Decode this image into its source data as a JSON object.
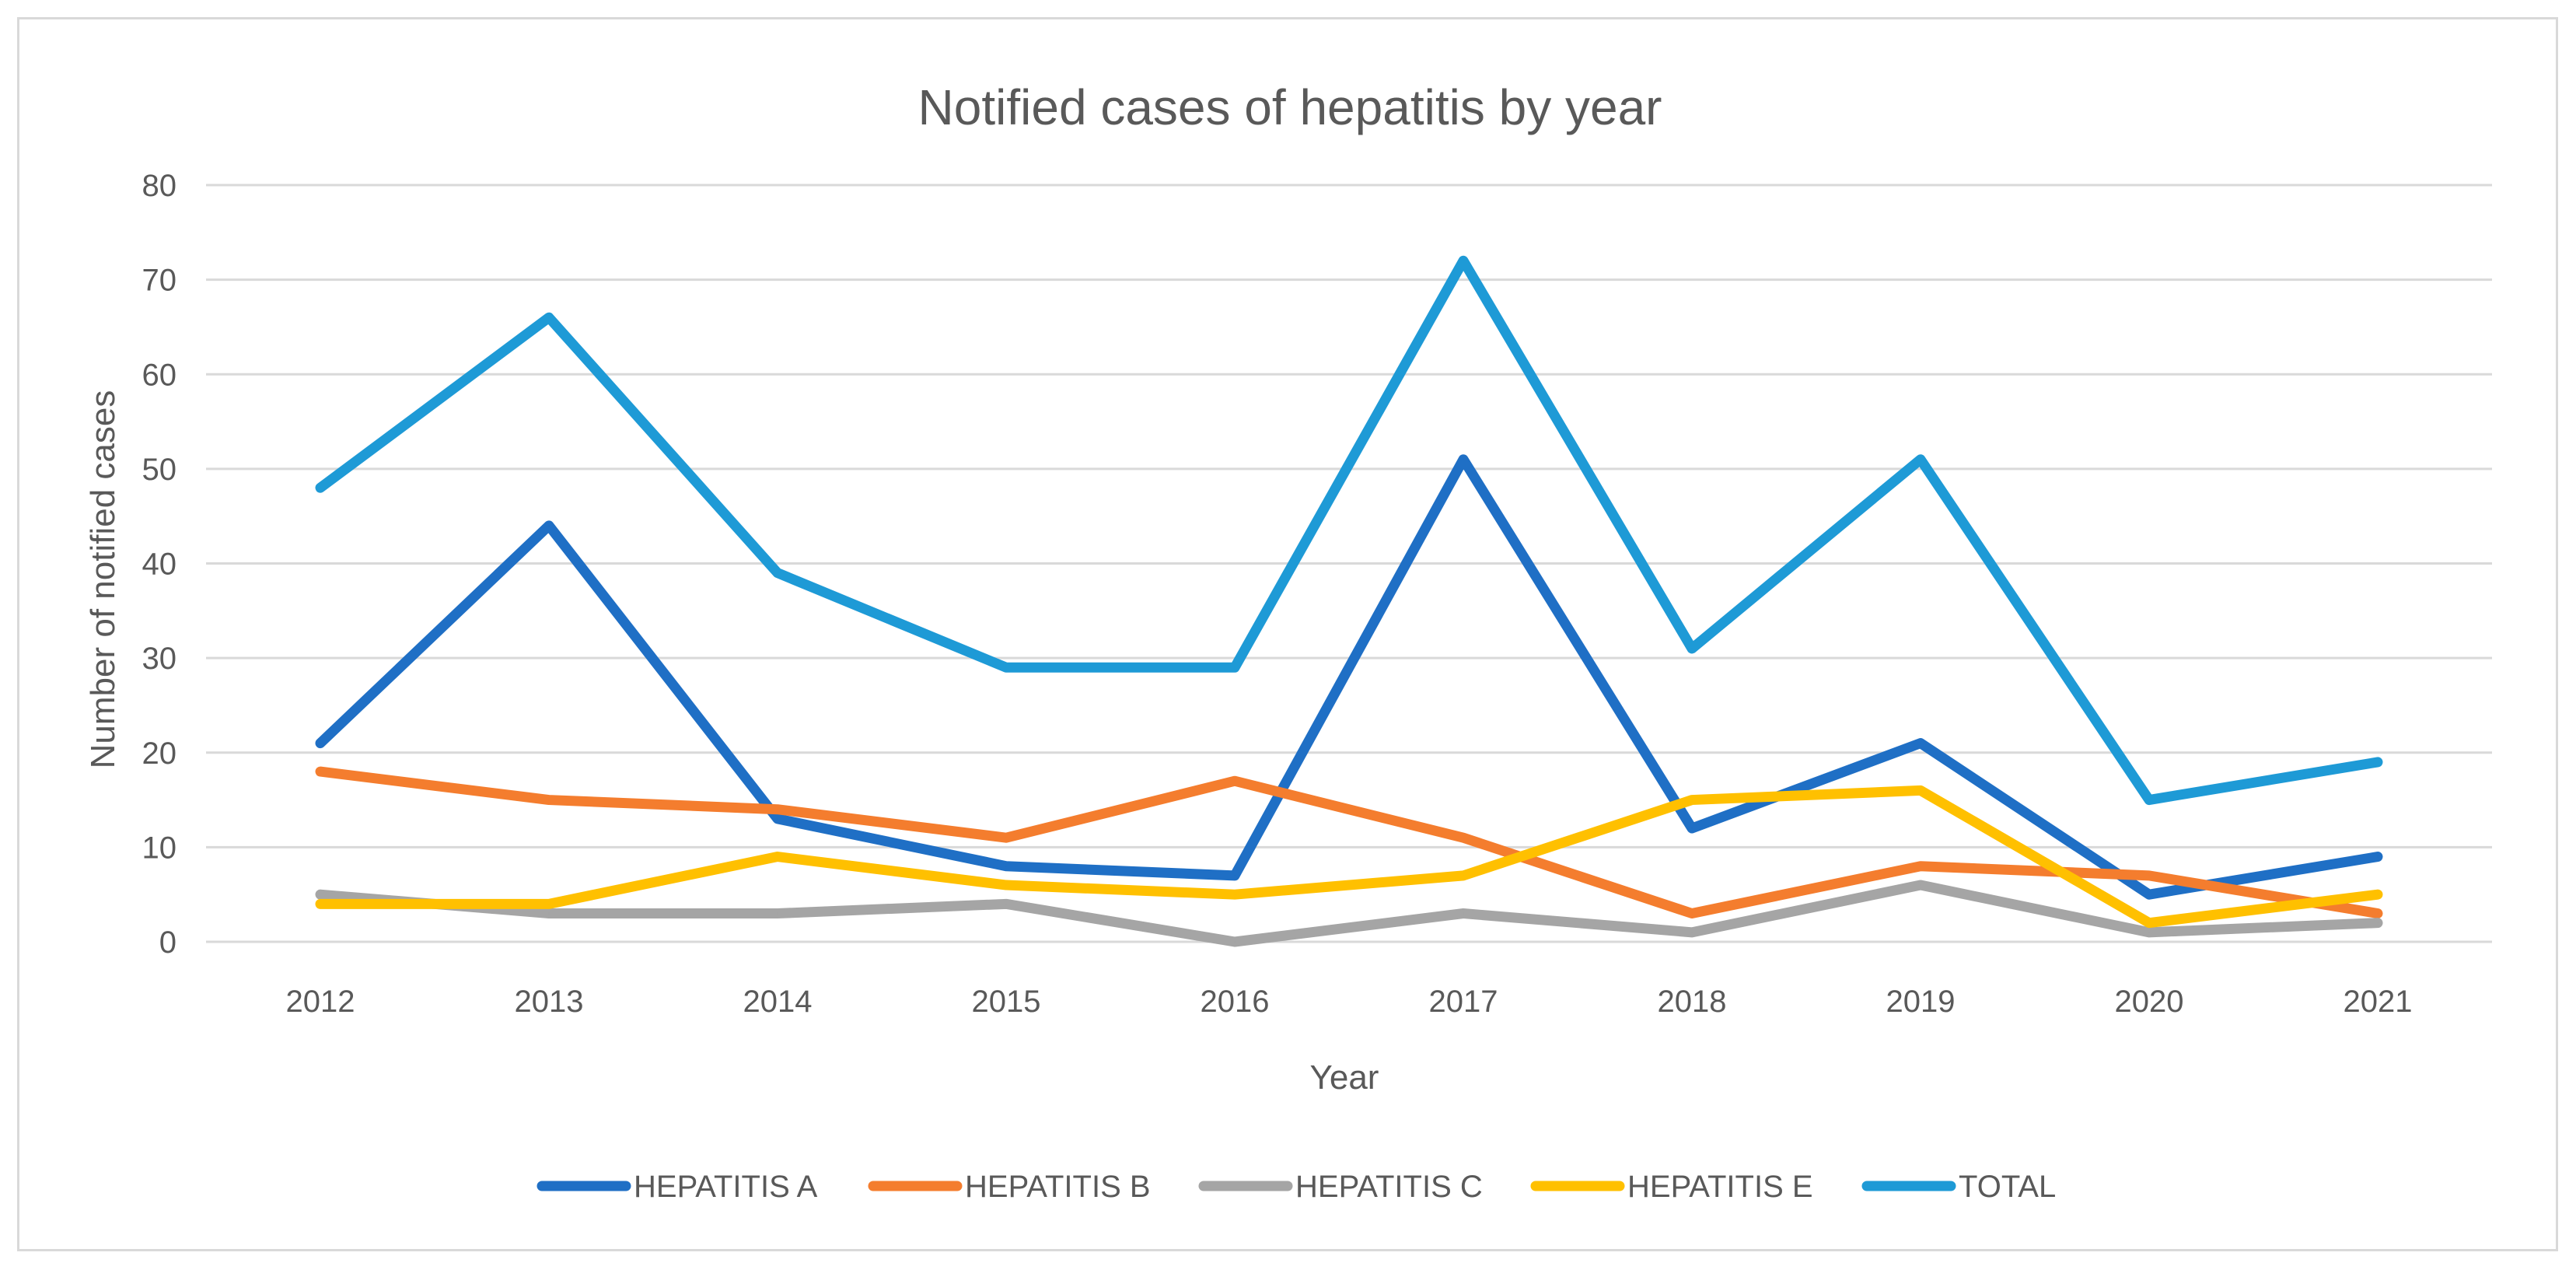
{
  "chart_data": {
    "type": "line",
    "title": "Notified cases of hepatitis by year",
    "xlabel": "Year",
    "ylabel": "Number of notified cases",
    "categories": [
      "2012",
      "2013",
      "2014",
      "2015",
      "2016",
      "2017",
      "2018",
      "2019",
      "2020",
      "2021"
    ],
    "ylim": [
      0,
      80
    ],
    "yticks": [
      "0",
      "10",
      "20",
      "30",
      "40",
      "50",
      "60",
      "70",
      "80"
    ],
    "grid": true,
    "legend_position": "bottom",
    "series": [
      {
        "name": "HEPATITIS A",
        "color": "#1f6fc5",
        "values": [
          21,
          44,
          13,
          8,
          7,
          51,
          12,
          21,
          5,
          9
        ]
      },
      {
        "name": "HEPATITIS B",
        "color": "#f47d2e",
        "values": [
          18,
          15,
          14,
          11,
          17,
          11,
          3,
          8,
          7,
          3
        ]
      },
      {
        "name": "HEPATITIS C",
        "color": "#a5a5a5",
        "values": [
          5,
          3,
          3,
          4,
          0,
          3,
          1,
          6,
          1,
          2
        ]
      },
      {
        "name": "HEPATITIS E",
        "color": "#ffc000",
        "values": [
          4,
          4,
          9,
          6,
          5,
          7,
          15,
          16,
          2,
          5
        ]
      },
      {
        "name": "TOTAL",
        "color": "#1e9ad6",
        "values": [
          48,
          66,
          39,
          29,
          29,
          72,
          31,
          51,
          15,
          19
        ]
      }
    ]
  }
}
